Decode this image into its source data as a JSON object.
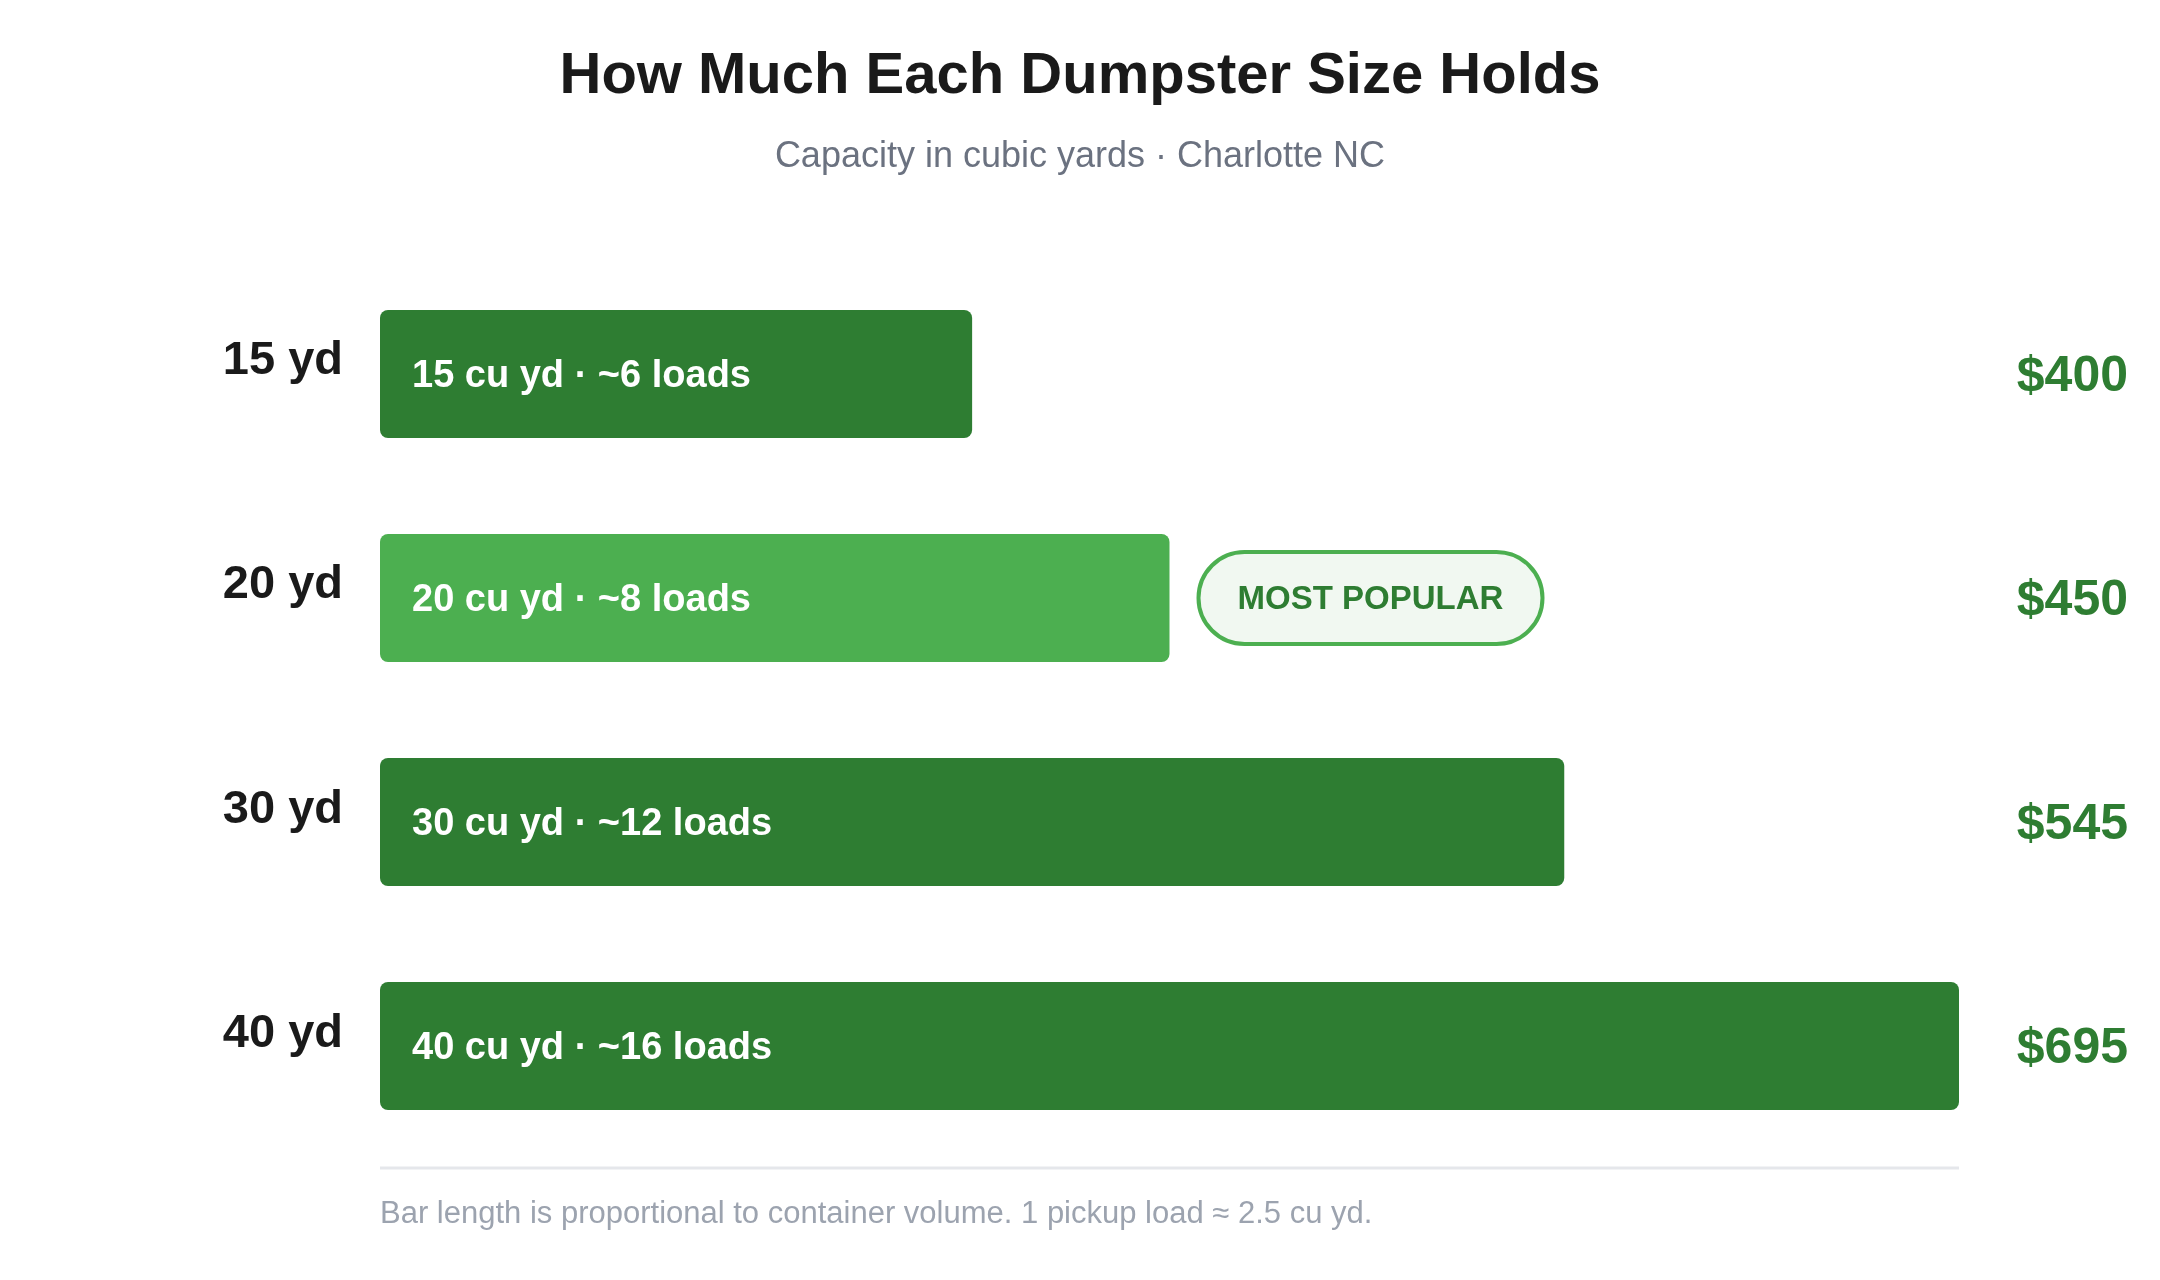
{
  "chart_data": {
    "type": "bar",
    "orientation": "horizontal",
    "title": "How Much Each Dumpster Size Holds",
    "subtitle": "Capacity in cubic yards · Charlotte NC",
    "categories": [
      "15 yd",
      "20 yd",
      "30 yd",
      "40 yd"
    ],
    "y2_categories": [
      "$400",
      "$450",
      "$545",
      "$695"
    ],
    "values": [
      15,
      20,
      30,
      40
    ],
    "value_labels": [
      "15 cu yd · ~6 loads",
      "20 cu yd · ~8 loads",
      "30 cu yd · ~12 loads",
      "40 cu yd · ~16 loads"
    ],
    "colors": [
      "#2e7d32",
      "#4caf50",
      "#2e7d32",
      "#2e7d32"
    ],
    "xlim": [
      0,
      40
    ],
    "tick_labels": "y",
    "annotations": [
      {
        "text": "MOST POPULAR",
        "x": 20,
        "y": "20 yd"
      },
      "Bar length is proportional to container volume. 1 pickup load ≈ 2.5 cu yd."
    ]
  }
}
